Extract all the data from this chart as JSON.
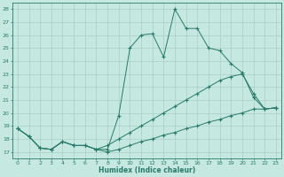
{
  "xlabel": "Humidex (Indice chaleur)",
  "bg_color": "#c5e8e0",
  "grid_color": "#a8cfc8",
  "line_color": "#2a7a6a",
  "xlim": [
    -0.5,
    23.5
  ],
  "ylim": [
    16.5,
    28.5
  ],
  "xticks": [
    0,
    1,
    2,
    3,
    4,
    5,
    6,
    7,
    8,
    9,
    10,
    11,
    12,
    13,
    14,
    15,
    16,
    17,
    18,
    19,
    20,
    21,
    22,
    23
  ],
  "yticks": [
    17,
    18,
    19,
    20,
    21,
    22,
    23,
    24,
    25,
    26,
    27,
    28
  ],
  "series1": [
    [
      0,
      18.8
    ],
    [
      1,
      18.2
    ],
    [
      2,
      17.3
    ],
    [
      3,
      17.2
    ],
    [
      4,
      17.8
    ],
    [
      5,
      17.5
    ],
    [
      6,
      17.5
    ],
    [
      7,
      17.2
    ],
    [
      8,
      17.2
    ],
    [
      9,
      19.8
    ],
    [
      10,
      25.0
    ],
    [
      11,
      26.0
    ],
    [
      12,
      26.1
    ],
    [
      13,
      24.3
    ],
    [
      14,
      28.0
    ],
    [
      15,
      26.5
    ],
    [
      16,
      26.5
    ],
    [
      17,
      25.0
    ],
    [
      18,
      24.8
    ],
    [
      19,
      23.8
    ],
    [
      20,
      23.1
    ],
    [
      21,
      21.2
    ],
    [
      22,
      20.3
    ],
    [
      23,
      20.4
    ]
  ],
  "series2": [
    [
      0,
      18.8
    ],
    [
      1,
      18.2
    ],
    [
      2,
      17.3
    ],
    [
      3,
      17.2
    ],
    [
      4,
      17.8
    ],
    [
      5,
      17.5
    ],
    [
      6,
      17.5
    ],
    [
      7,
      17.2
    ],
    [
      8,
      17.5
    ],
    [
      9,
      18.0
    ],
    [
      10,
      18.5
    ],
    [
      11,
      19.0
    ],
    [
      12,
      19.5
    ],
    [
      13,
      20.0
    ],
    [
      14,
      20.5
    ],
    [
      15,
      21.0
    ],
    [
      16,
      21.5
    ],
    [
      17,
      22.0
    ],
    [
      18,
      22.5
    ],
    [
      19,
      22.8
    ],
    [
      20,
      23.0
    ],
    [
      21,
      21.5
    ],
    [
      22,
      20.3
    ],
    [
      23,
      20.4
    ]
  ],
  "series3": [
    [
      0,
      18.8
    ],
    [
      1,
      18.2
    ],
    [
      2,
      17.3
    ],
    [
      3,
      17.2
    ],
    [
      4,
      17.8
    ],
    [
      5,
      17.5
    ],
    [
      6,
      17.5
    ],
    [
      7,
      17.2
    ],
    [
      8,
      17.0
    ],
    [
      9,
      17.2
    ],
    [
      10,
      17.5
    ],
    [
      11,
      17.8
    ],
    [
      12,
      18.0
    ],
    [
      13,
      18.3
    ],
    [
      14,
      18.5
    ],
    [
      15,
      18.8
    ],
    [
      16,
      19.0
    ],
    [
      17,
      19.3
    ],
    [
      18,
      19.5
    ],
    [
      19,
      19.8
    ],
    [
      20,
      20.0
    ],
    [
      21,
      20.3
    ],
    [
      22,
      20.3
    ],
    [
      23,
      20.4
    ]
  ]
}
